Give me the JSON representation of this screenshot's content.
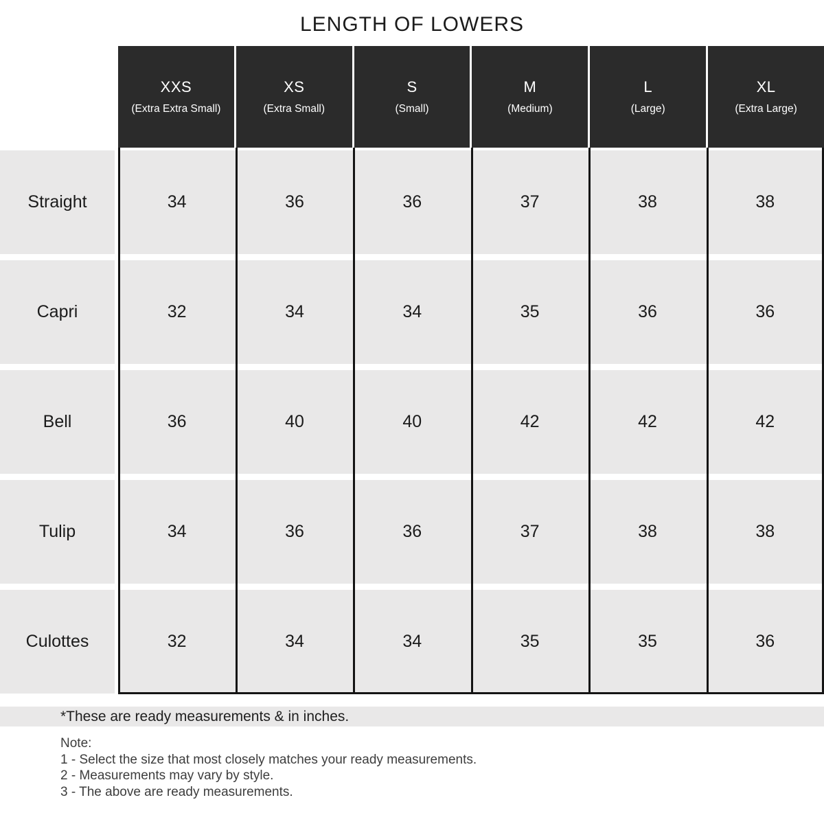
{
  "title": "LENGTH OF LOWERS",
  "table": {
    "columns": [
      {
        "size": "XXS",
        "full": "(Extra Extra Small)"
      },
      {
        "size": "XS",
        "full": "(Extra Small)"
      },
      {
        "size": "S",
        "full": "(Small)"
      },
      {
        "size": "M",
        "full": "(Medium)"
      },
      {
        "size": "L",
        "full": "(Large)"
      },
      {
        "size": "XL",
        "full": "(Extra Large)"
      }
    ],
    "rows": [
      {
        "label": "Straight",
        "values": [
          "34",
          "36",
          "36",
          "37",
          "38",
          "38"
        ]
      },
      {
        "label": "Capri",
        "values": [
          "32",
          "34",
          "34",
          "35",
          "36",
          "36"
        ]
      },
      {
        "label": "Bell",
        "values": [
          "36",
          "40",
          "40",
          "42",
          "42",
          "42"
        ]
      },
      {
        "label": "Tulip",
        "values": [
          "34",
          "36",
          "36",
          "37",
          "38",
          "38"
        ]
      },
      {
        "label": "Culottes",
        "values": [
          "32",
          "34",
          "34",
          "35",
          "35",
          "36"
        ]
      }
    ]
  },
  "footnote": "*These are ready measurements & in inches.",
  "note": {
    "heading": "Note:",
    "items": [
      "1 - Select the size that most closely matches your ready measurements.",
      "2 - Measurements may vary by style.",
      "3 - The above are ready measurements."
    ]
  },
  "colors": {
    "header_bg": "#2b2b2b",
    "header_text": "#ffffff",
    "row_bg": "#e9e8e8",
    "grid_line": "#141414",
    "text": "#1b1b1b"
  },
  "chart_data": {
    "type": "table",
    "title": "LENGTH OF LOWERS",
    "columns": [
      "XXS (Extra Extra Small)",
      "XS (Extra Small)",
      "S (Small)",
      "M (Medium)",
      "L (Large)",
      "XL (Extra Large)"
    ],
    "row_labels": [
      "Straight",
      "Capri",
      "Bell",
      "Tulip",
      "Culottes"
    ],
    "rows": [
      [
        34,
        36,
        36,
        37,
        38,
        38
      ],
      [
        32,
        34,
        34,
        35,
        36,
        36
      ],
      [
        36,
        40,
        40,
        42,
        42,
        42
      ],
      [
        34,
        36,
        36,
        37,
        38,
        38
      ],
      [
        32,
        34,
        34,
        35,
        35,
        36
      ]
    ],
    "units": "inches"
  }
}
